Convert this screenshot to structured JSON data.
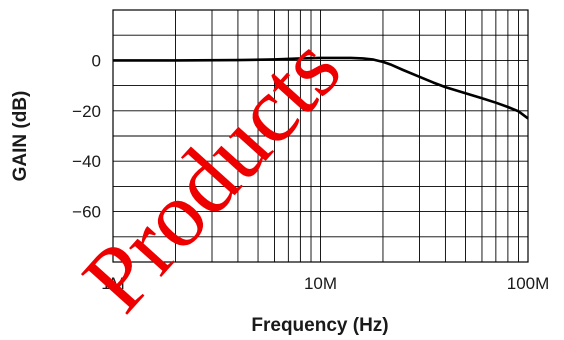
{
  "chart_data": {
    "type": "line",
    "title": "",
    "xlabel": "Frequency (Hz)",
    "ylabel": "GAIN (dB)",
    "xscale": "log",
    "xlim": [
      1000000,
      100000000
    ],
    "ylim": [
      -80,
      20
    ],
    "grid": true,
    "x_ticks": [
      {
        "value": 1000000,
        "label": "1M"
      },
      {
        "value": 10000000,
        "label": "10M"
      },
      {
        "value": 100000000,
        "label": "100M"
      }
    ],
    "y_ticks": [
      {
        "value": 0,
        "label": "0"
      },
      {
        "value": -20,
        "label": "−20"
      },
      {
        "value": -40,
        "label": "−40"
      },
      {
        "value": -60,
        "label": "−60"
      }
    ],
    "series": [
      {
        "color": "#000000",
        "x": [
          1000000,
          2000000,
          4000000,
          6000000,
          8000000,
          10000000,
          12000000,
          14000000,
          16000000,
          18000000,
          20000000,
          22000000,
          25000000,
          30000000,
          35000000,
          40000000,
          50000000,
          60000000,
          70000000,
          80000000,
          90000000,
          100000000
        ],
        "y": [
          0,
          0,
          0.1,
          0.4,
          0.8,
          1.0,
          1.0,
          1.0,
          0.8,
          0.3,
          -0.6,
          -1.8,
          -3.8,
          -6.5,
          -8.8,
          -10.6,
          -13.0,
          -15.0,
          -16.8,
          -18.5,
          -20.2,
          -23.0
        ]
      }
    ]
  },
  "watermark": {
    "text": "Products",
    "color": "#ee0000"
  }
}
